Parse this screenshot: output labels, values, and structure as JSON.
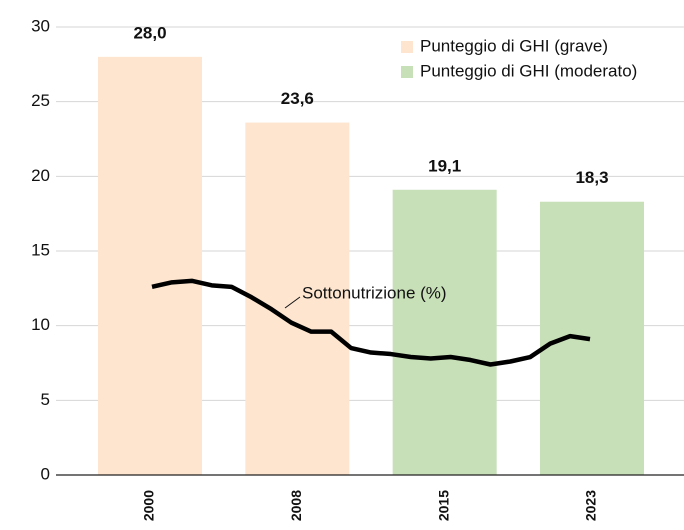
{
  "chart_data": {
    "type": "bar",
    "categories": [
      "2000",
      "2008",
      "2015",
      "2023"
    ],
    "series": [
      {
        "name": "Punteggio di GHI (grave)",
        "color": "#fde5cf",
        "values": [
          28.0,
          23.6,
          null,
          null
        ],
        "value_labels": [
          "28,0",
          "23,6",
          null,
          null
        ]
      },
      {
        "name": "Punteggio di GHI (moderato)",
        "color": "#c8e0b8",
        "values": [
          null,
          null,
          19.1,
          18.3
        ],
        "value_labels": [
          null,
          null,
          "19,1",
          "18,3"
        ]
      }
    ],
    "line": {
      "type": "line",
      "name": "Sottonutrizione (%)",
      "color": "#000000",
      "x": [
        2000,
        2001,
        2002,
        2003,
        2004,
        2005,
        2006,
        2007,
        2008,
        2009,
        2010,
        2011,
        2012,
        2013,
        2014,
        2015,
        2016,
        2017,
        2018,
        2019,
        2020,
        2021,
        2022
      ],
      "values": [
        12.6,
        12.9,
        13.0,
        12.7,
        12.6,
        11.9,
        11.1,
        10.2,
        9.6,
        9.6,
        8.5,
        8.2,
        8.1,
        7.9,
        7.8,
        7.9,
        7.7,
        7.4,
        7.6,
        7.9,
        8.8,
        9.3,
        9.1
      ]
    },
    "ylim": [
      0,
      30
    ],
    "yticks": [
      0,
      5,
      10,
      15,
      20,
      25,
      30
    ],
    "grid": true,
    "legend": "top-right"
  }
}
